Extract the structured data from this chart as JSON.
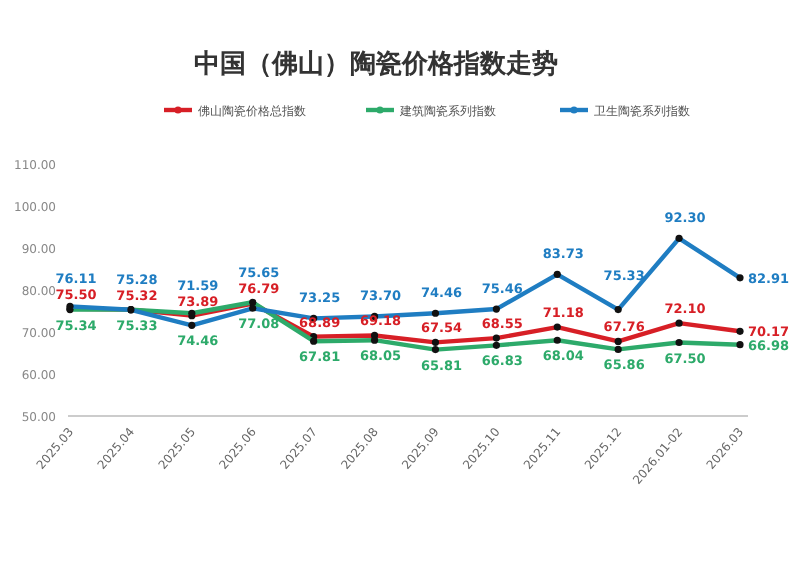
{
  "chart_data": {
    "type": "line",
    "title": "中国（佛山）陶瓷价格指数走势",
    "categories": [
      "2025.03",
      "2025.04",
      "2025.05",
      "2025.06",
      "2025.07",
      "2025.08",
      "2025.09",
      "2025.10",
      "2025.11",
      "2025.12",
      "2026.01-02",
      "2026.03"
    ],
    "series": [
      {
        "name": "佛山陶瓷价格总指数",
        "color": "#d71f26",
        "values": [
          75.5,
          75.32,
          73.89,
          76.79,
          68.89,
          69.18,
          67.54,
          68.55,
          71.18,
          67.76,
          72.1,
          70.17
        ],
        "value_labels": [
          "75.50",
          "75.32",
          "73.89",
          "76.79",
          "68.89",
          "69.18",
          "67.54",
          "68.55",
          "71.18",
          "67.76",
          "72.10",
          "70.17"
        ]
      },
      {
        "name": "建筑陶瓷系列指数",
        "color": "#2daa6a",
        "values": [
          75.34,
          75.33,
          74.46,
          77.08,
          67.81,
          68.05,
          65.81,
          66.83,
          68.04,
          65.86,
          67.5,
          66.98
        ],
        "value_labels": [
          "75.34",
          "75.33",
          "74.46",
          "77.08",
          "67.81",
          "68.05",
          "65.81",
          "66.83",
          "68.04",
          "65.86",
          "67.50",
          "66.98"
        ]
      },
      {
        "name": "卫生陶瓷系列指数",
        "color": "#1f7dc2",
        "values": [
          76.11,
          75.28,
          71.59,
          75.65,
          73.25,
          73.7,
          74.46,
          75.46,
          83.73,
          75.33,
          92.3,
          82.91
        ],
        "value_labels": [
          "76.11",
          "75.28",
          "71.59",
          "75.65",
          "73.25",
          "73.70",
          "74.46",
          "75.46",
          "83.73",
          "75.33",
          "92.30",
          "82.91"
        ]
      }
    ],
    "ylim": [
      50,
      110
    ],
    "yticks": [
      {
        "value": 50,
        "label": "50.00"
      },
      {
        "value": 60,
        "label": "60.00"
      },
      {
        "value": 70,
        "label": "70.00"
      },
      {
        "value": 80,
        "label": "80.00"
      },
      {
        "value": 90,
        "label": "90.00"
      },
      {
        "value": 100,
        "label": "100.00"
      },
      {
        "value": 110,
        "label": "110.00"
      }
    ],
    "legend": "top",
    "marker": "circle",
    "grid": false
  }
}
